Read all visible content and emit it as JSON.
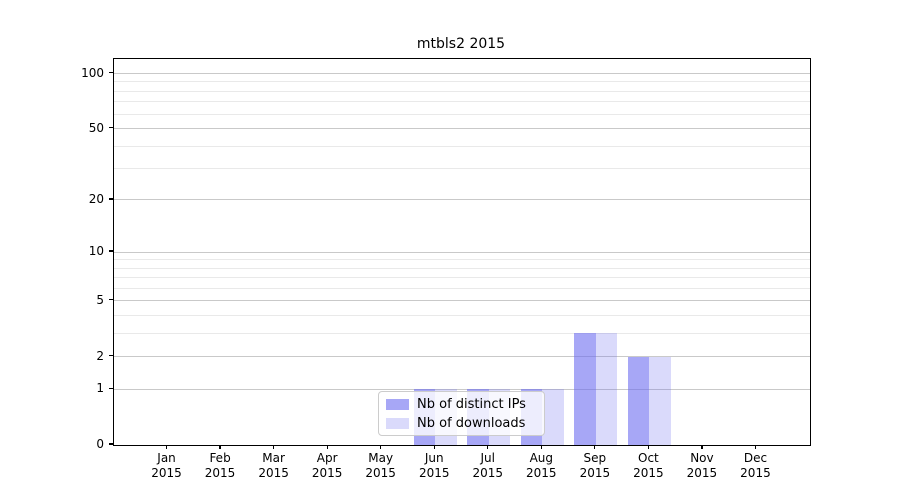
{
  "chart_data": {
    "type": "bar",
    "title": "mtbls2 2015",
    "categories": [
      "Jan",
      "Feb",
      "Mar",
      "Apr",
      "May",
      "Jun",
      "Jul",
      "Aug",
      "Sep",
      "Oct",
      "Nov",
      "Dec"
    ],
    "year": "2015",
    "series": [
      {
        "name": "Nb of distinct IPs",
        "values": [
          0,
          0,
          0,
          0,
          0,
          1,
          1,
          1,
          3,
          2,
          0,
          0
        ],
        "color_rgb": "108,108,240",
        "alpha": 0.6
      },
      {
        "name": "Nb of downloads",
        "values": [
          0,
          0,
          0,
          0,
          0,
          1,
          1,
          1,
          3,
          2,
          0,
          0
        ],
        "color_rgb": "108,108,240",
        "alpha": 0.25
      }
    ],
    "yscale": "log1p",
    "ylim": [
      0,
      120
    ],
    "yticks": [
      0,
      1,
      2,
      5,
      10,
      20,
      50,
      100
    ],
    "yticks_minor": [
      3,
      4,
      6,
      7,
      8,
      9,
      30,
      40,
      60,
      70,
      80,
      90
    ],
    "grid": "horizontal",
    "legend": {
      "position": "lower center",
      "entries": [
        "Nb of distinct IPs",
        "Nb of downloads"
      ]
    },
    "colors": {
      "bar_base": "#6c6cf0",
      "bar_dark_rendered": "#a9a9f7",
      "bar_light_rendered": "#d9d9f7",
      "grid_major": "#c9c9c9",
      "grid_minor": "#e9e9e9",
      "spine": "#000000"
    }
  }
}
